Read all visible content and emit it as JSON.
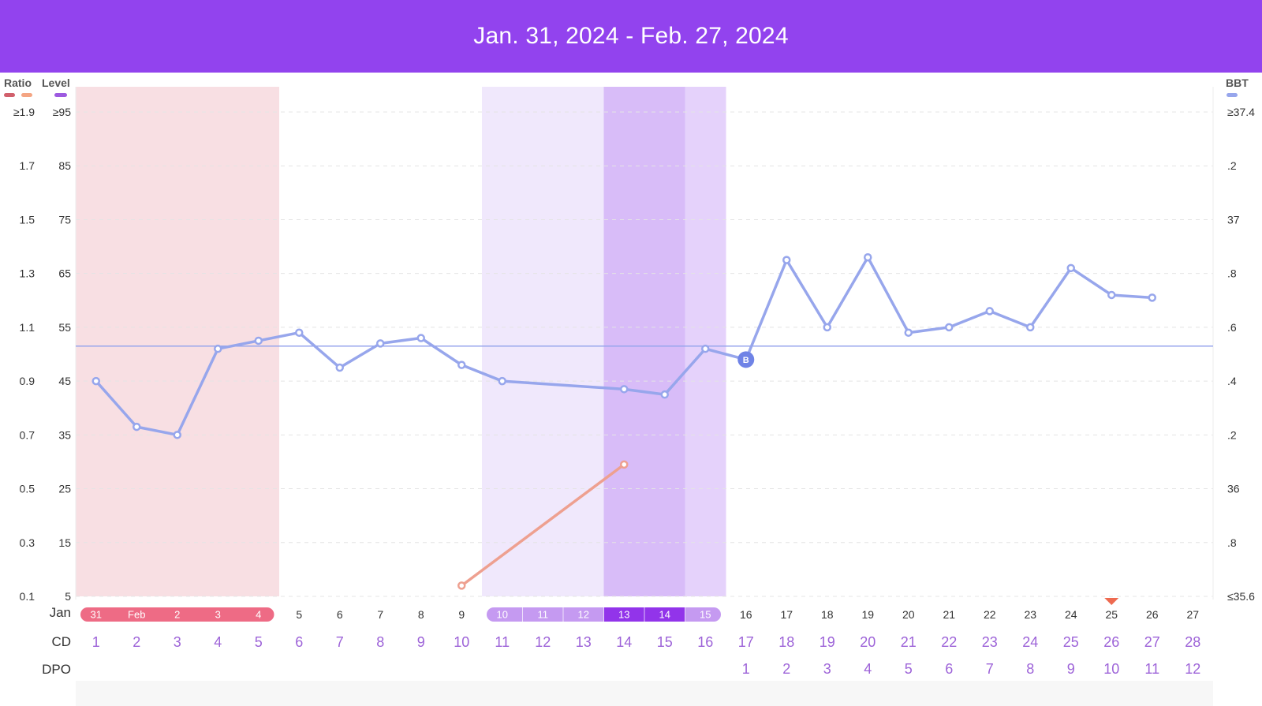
{
  "header": {
    "title": "Jan. 31, 2024 - Feb. 27, 2024"
  },
  "colors": {
    "header": "#9243ee",
    "bbt_line": "#97a6ec",
    "lh_line": "#eea090",
    "period_band": "#f8dfe3",
    "period_pill": "#ee6b85",
    "fertile_light": "#f0e8fc",
    "fertile_medium": "#e5d2fb",
    "fertile_peak": "#d8bcf8",
    "pill_light": "#c59af1",
    "pill_peak": "#9234ea",
    "cd_text": "#9d63d8",
    "triangle": "#ee6a50",
    "ratio_legend_a": "#d1606c",
    "ratio_legend_b": "#f4a583",
    "level_legend": "#9d5ae0"
  },
  "legends": {
    "ratio": "Ratio",
    "level": "Level",
    "bbt": "BBT"
  },
  "rows": {
    "month": "Jan",
    "cd": "CD",
    "dpo": "DPO"
  },
  "chart_data": {
    "type": "line",
    "left_axis_ratio": [
      "≥1.9",
      "1.7",
      "1.5",
      "1.3",
      "1.1",
      "0.9",
      "0.7",
      "0.5",
      "0.3",
      "0.1"
    ],
    "left_axis_level": [
      "≥95",
      "85",
      "75",
      "65",
      "55",
      "45",
      "35",
      "25",
      "15",
      "5"
    ],
    "right_axis_bbt": [
      "≥37.4",
      ".2",
      "37",
      ".8",
      ".6",
      ".4",
      ".2",
      "36",
      ".8",
      "≤35.6"
    ],
    "bbt_range": [
      35.6,
      37.4
    ],
    "ratio_range": [
      0.1,
      1.9
    ],
    "dates": [
      "31",
      "Feb",
      "2",
      "3",
      "4",
      "5",
      "6",
      "7",
      "8",
      "9",
      "10",
      "11",
      "12",
      "13",
      "14",
      "15",
      "16",
      "17",
      "18",
      "19",
      "20",
      "21",
      "22",
      "23",
      "24",
      "25",
      "26",
      "27"
    ],
    "cycle_days": [
      "1",
      "2",
      "3",
      "4",
      "5",
      "6",
      "7",
      "8",
      "9",
      "10",
      "11",
      "12",
      "13",
      "14",
      "15",
      "16",
      "17",
      "18",
      "19",
      "20",
      "21",
      "22",
      "23",
      "24",
      "25",
      "26",
      "27",
      "28"
    ],
    "dpo": [
      "",
      "",
      "",
      "",
      "",
      "",
      "",
      "",
      "",
      "",
      "",
      "",
      "",
      "",
      "",
      "",
      "1",
      "2",
      "3",
      "4",
      "5",
      "6",
      "7",
      "8",
      "9",
      "10",
      "11",
      "12"
    ],
    "period_days": [
      1,
      2,
      3,
      4,
      5
    ],
    "fertile_days": {
      "light": [
        11,
        12,
        13
      ],
      "peak": [
        14,
        15
      ],
      "medium": [
        16
      ]
    },
    "series": [
      {
        "name": "BBT",
        "axis": "bbt",
        "values": [
          36.4,
          36.23,
          36.2,
          36.52,
          36.55,
          36.58,
          36.45,
          36.54,
          36.56,
          36.46,
          36.4,
          null,
          null,
          36.37,
          36.35,
          36.52,
          36.48,
          36.85,
          36.6,
          36.86,
          36.58,
          36.6,
          36.66,
          36.6,
          36.82,
          36.72,
          36.71,
          null
        ]
      },
      {
        "name": "Ratio",
        "axis": "ratio",
        "values": [
          null,
          null,
          null,
          null,
          null,
          null,
          null,
          null,
          null,
          0.14,
          null,
          null,
          null,
          0.59,
          null,
          null,
          null,
          null,
          null,
          null,
          null,
          null,
          null,
          null,
          null,
          null,
          null,
          null
        ]
      }
    ],
    "coverline_bbt": 36.53,
    "bbt_marker": {
      "day": 17,
      "label": "B"
    },
    "period_prediction_day": 26
  }
}
